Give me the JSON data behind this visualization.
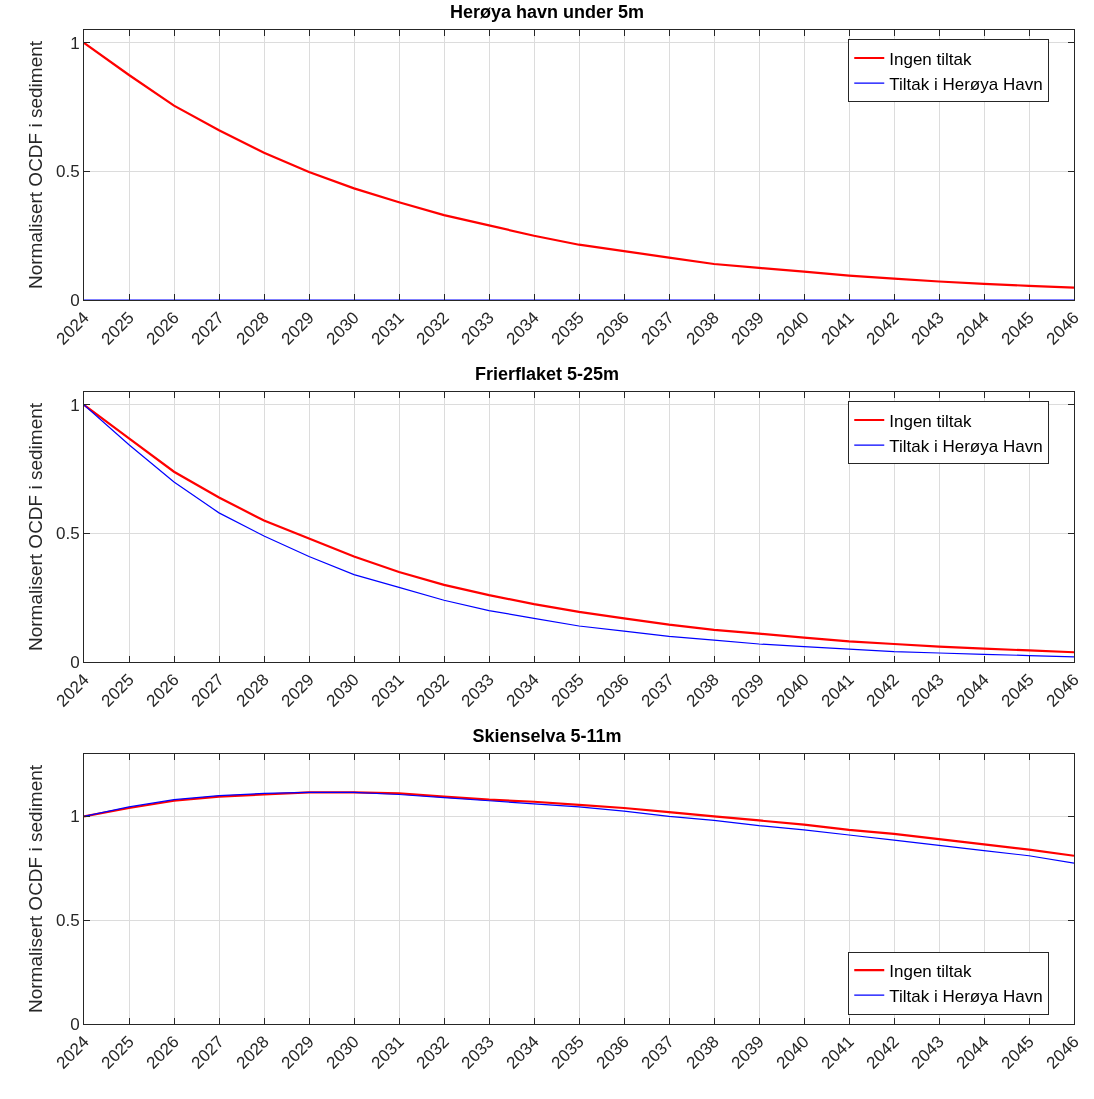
{
  "chart_data": [
    {
      "type": "line",
      "title": "Herøya havn under 5m",
      "ylabel": "Normalisert OCDF i sediment",
      "x": [
        2024,
        2025,
        2026,
        2027,
        2028,
        2029,
        2030,
        2031,
        2032,
        2033,
        2034,
        2035,
        2036,
        2037,
        2038,
        2039,
        2040,
        2041,
        2042,
        2043,
        2044,
        2045,
        2046
      ],
      "series": [
        {
          "name": "Ingen tiltak",
          "color": "#ff0000",
          "values": [
            1,
            0.875,
            0.756,
            0.66,
            0.573,
            0.498,
            0.434,
            0.38,
            0.33,
            0.29,
            0.25,
            0.215,
            0.19,
            0.165,
            0.14,
            0.125,
            0.11,
            0.095,
            0.083,
            0.072,
            0.063,
            0.055,
            0.048
          ]
        },
        {
          "name": "Tiltak i Herøya Havn",
          "color": "#0000ff",
          "values": [
            0,
            0,
            0,
            0,
            0,
            0,
            0,
            0,
            0,
            0,
            0,
            0,
            0,
            0,
            0,
            0,
            0,
            0,
            0,
            0,
            0,
            0,
            0
          ]
        }
      ],
      "xlim": [
        2024,
        2046
      ],
      "xticks": [
        2024,
        2025,
        2026,
        2027,
        2028,
        2029,
        2030,
        2031,
        2032,
        2033,
        2034,
        2035,
        2036,
        2037,
        2038,
        2039,
        2040,
        2041,
        2042,
        2043,
        2044,
        2045,
        2046
      ],
      "ylim": [
        0,
        1.05
      ],
      "yticks": [
        0,
        0.5,
        1
      ],
      "grid": true,
      "legend": "top right",
      "marker": "none"
    },
    {
      "type": "line",
      "title": "Frierflaket 5-25m",
      "ylabel": "Normalisert OCDF i sediment",
      "x": [
        2024,
        2025,
        2026,
        2027,
        2028,
        2029,
        2030,
        2031,
        2032,
        2033,
        2034,
        2035,
        2036,
        2037,
        2038,
        2039,
        2040,
        2041,
        2042,
        2043,
        2044,
        2045,
        2046
      ],
      "series": [
        {
          "name": "Ingen tiltak",
          "color": "#ff0000",
          "values": [
            1,
            0.87,
            0.74,
            0.64,
            0.55,
            0.48,
            0.41,
            0.35,
            0.3,
            0.26,
            0.225,
            0.195,
            0.17,
            0.145,
            0.125,
            0.11,
            0.095,
            0.08,
            0.07,
            0.06,
            0.052,
            0.045,
            0.038
          ]
        },
        {
          "name": "Tiltak i Herøya Havn",
          "color": "#0000ff",
          "values": [
            1,
            0.845,
            0.7,
            0.58,
            0.49,
            0.41,
            0.34,
            0.29,
            0.24,
            0.2,
            0.17,
            0.14,
            0.12,
            0.1,
            0.085,
            0.07,
            0.06,
            0.05,
            0.04,
            0.035,
            0.03,
            0.025,
            0.02
          ]
        }
      ],
      "xlim": [
        2024,
        2046
      ],
      "xticks": [
        2024,
        2025,
        2026,
        2027,
        2028,
        2029,
        2030,
        2031,
        2032,
        2033,
        2034,
        2035,
        2036,
        2037,
        2038,
        2039,
        2040,
        2041,
        2042,
        2043,
        2044,
        2045,
        2046
      ],
      "ylim": [
        0,
        1.05
      ],
      "yticks": [
        0,
        0.5,
        1
      ],
      "grid": true,
      "legend": "top right",
      "marker": "none"
    },
    {
      "type": "line",
      "title": "Skienselva 5-11m",
      "ylabel": "Normalisert OCDF i sediment",
      "x": [
        2024,
        2025,
        2026,
        2027,
        2028,
        2029,
        2030,
        2031,
        2032,
        2033,
        2034,
        2035,
        2036,
        2037,
        2038,
        2039,
        2040,
        2041,
        2042,
        2043,
        2044,
        2045,
        2046
      ],
      "series": [
        {
          "name": "Ingen tiltak",
          "color": "#ff0000",
          "values": [
            1,
            1.04,
            1.075,
            1.095,
            1.105,
            1.115,
            1.115,
            1.11,
            1.095,
            1.08,
            1.07,
            1.055,
            1.04,
            1.02,
            1.0,
            0.98,
            0.96,
            0.935,
            0.915,
            0.89,
            0.865,
            0.84,
            0.81
          ]
        },
        {
          "name": "Tiltak i Herøya Havn",
          "color": "#0000ff",
          "values": [
            1,
            1.045,
            1.08,
            1.1,
            1.11,
            1.115,
            1.115,
            1.105,
            1.09,
            1.075,
            1.06,
            1.045,
            1.025,
            1.0,
            0.98,
            0.955,
            0.935,
            0.91,
            0.885,
            0.86,
            0.835,
            0.81,
            0.775
          ]
        }
      ],
      "xlim": [
        2024,
        2046
      ],
      "xticks": [
        2024,
        2025,
        2026,
        2027,
        2028,
        2029,
        2030,
        2031,
        2032,
        2033,
        2034,
        2035,
        2036,
        2037,
        2038,
        2039,
        2040,
        2041,
        2042,
        2043,
        2044,
        2045,
        2046
      ],
      "ylim": [
        0,
        1.3
      ],
      "yticks": [
        0,
        0.5,
        1
      ],
      "grid": true,
      "legend": "bottom right",
      "marker": "none"
    }
  ]
}
